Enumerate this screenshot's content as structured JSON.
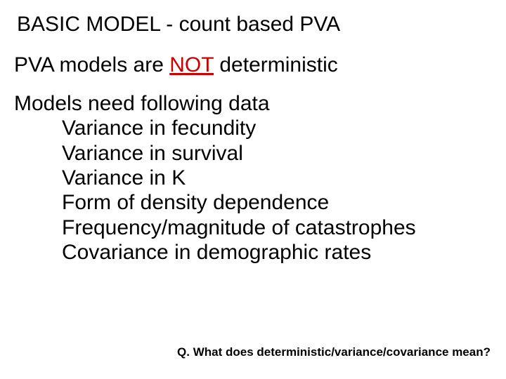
{
  "title": "BASIC MODEL - count based PVA",
  "line1_pre": "PVA models are ",
  "line1_not": "NOT",
  "line1_post": " deterministic",
  "block_heading": "Models need following data",
  "items": {
    "i0": "Variance in fecundity",
    "i1": "Variance in survival",
    "i2": "Variance in K",
    "i3": "Form of density dependence",
    "i4": "Frequency/magnitude of catastrophes",
    "i5": "Covariance in demographic rates"
  },
  "footer": "Q. What does deterministic/variance/covariance mean?",
  "colors": {
    "emphasis": "#cc0000",
    "text": "#000000",
    "background": "#ffffff"
  },
  "typography": {
    "body_font": "Comic Sans MS",
    "body_size_pt": 22,
    "footer_font": "Arial",
    "footer_size_pt": 13,
    "footer_weight": "bold"
  }
}
